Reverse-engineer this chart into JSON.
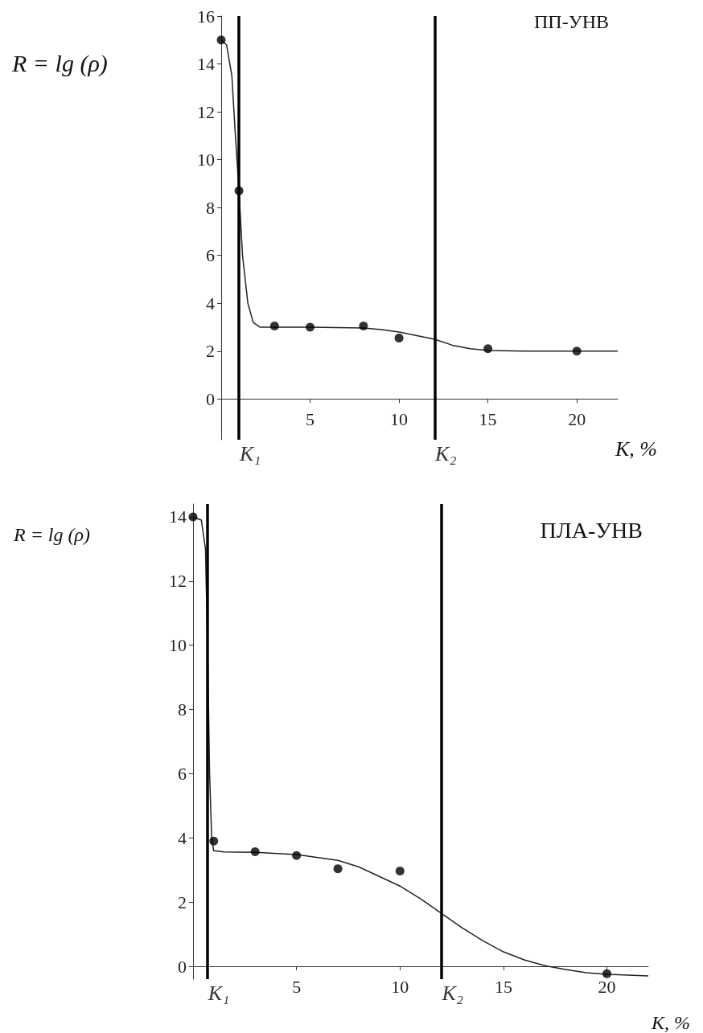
{
  "chart_data": [
    {
      "type": "scatter",
      "title": "ПП-УНВ",
      "xlabel": "К, %",
      "ylabel": "R = lg (ρ)",
      "xlim": [
        0,
        22.3
      ],
      "ylim": [
        -1.7,
        16
      ],
      "xticks": [
        5,
        10,
        15,
        20
      ],
      "yticks": [
        0,
        2,
        4,
        6,
        8,
        10,
        12,
        14,
        16
      ],
      "series": [
        {
          "marker": "circle",
          "color": "#000000",
          "x": [
            0,
            1,
            3,
            5,
            8,
            10,
            15,
            20
          ],
          "values": [
            15,
            8.7,
            3.05,
            3.0,
            3.05,
            2.55,
            2.1,
            2.0
          ]
        },
        {
          "type": "line",
          "color": "#222222",
          "x": [
            0,
            0.3,
            0.6,
            0.8,
            1,
            1.2,
            1.5,
            1.8,
            2.2,
            5,
            8,
            9,
            10,
            11,
            12,
            13,
            14,
            15,
            17,
            22.3
          ],
          "values": [
            15,
            14.8,
            13.5,
            11,
            8.7,
            6,
            4,
            3.2,
            3.0,
            3.0,
            2.97,
            2.9,
            2.8,
            2.65,
            2.5,
            2.25,
            2.1,
            2.03,
            2.0,
            2.0
          ]
        }
      ],
      "ref_lines": [
        {
          "axis": "x",
          "value": 1,
          "label": "K₁",
          "color": "#000000"
        },
        {
          "axis": "x",
          "value": 12,
          "label": "K₂",
          "color": "#000000"
        }
      ]
    },
    {
      "type": "scatter",
      "title": "ПЛА-УНВ",
      "xlabel": "К, %",
      "ylabel": "R = lg (ρ)",
      "xlim": [
        0,
        22
      ],
      "ylim": [
        -0.4,
        14.4
      ],
      "xticks": [
        5,
        10,
        15,
        20
      ],
      "yticks": [
        0,
        2,
        4,
        6,
        8,
        10,
        12,
        14
      ],
      "series": [
        {
          "marker": "circle",
          "color": "#000000",
          "x": [
            0,
            1,
            3,
            5,
            7,
            10,
            20
          ],
          "values": [
            14,
            3.9,
            3.57,
            3.45,
            3.04,
            2.97,
            -0.23
          ]
        },
        {
          "type": "line",
          "color": "#222222",
          "x": [
            0,
            0.4,
            0.6,
            0.7,
            0.8,
            0.9,
            1.0,
            1.5,
            3,
            5,
            7,
            8,
            9,
            10,
            11,
            12,
            13,
            14,
            15,
            16,
            17,
            18,
            19,
            20,
            22
          ],
          "values": [
            14,
            13.9,
            13,
            10,
            6,
            4,
            3.6,
            3.56,
            3.55,
            3.48,
            3.3,
            3.1,
            2.8,
            2.5,
            2.1,
            1.65,
            1.2,
            0.8,
            0.45,
            0.2,
            0.02,
            -0.1,
            -0.2,
            -0.25,
            -0.3
          ]
        }
      ],
      "ref_lines": [
        {
          "axis": "x",
          "value": 0.7,
          "label": "K₁",
          "color": "#000000"
        },
        {
          "axis": "x",
          "value": 12,
          "label": "K₂",
          "color": "#000000"
        }
      ]
    }
  ]
}
